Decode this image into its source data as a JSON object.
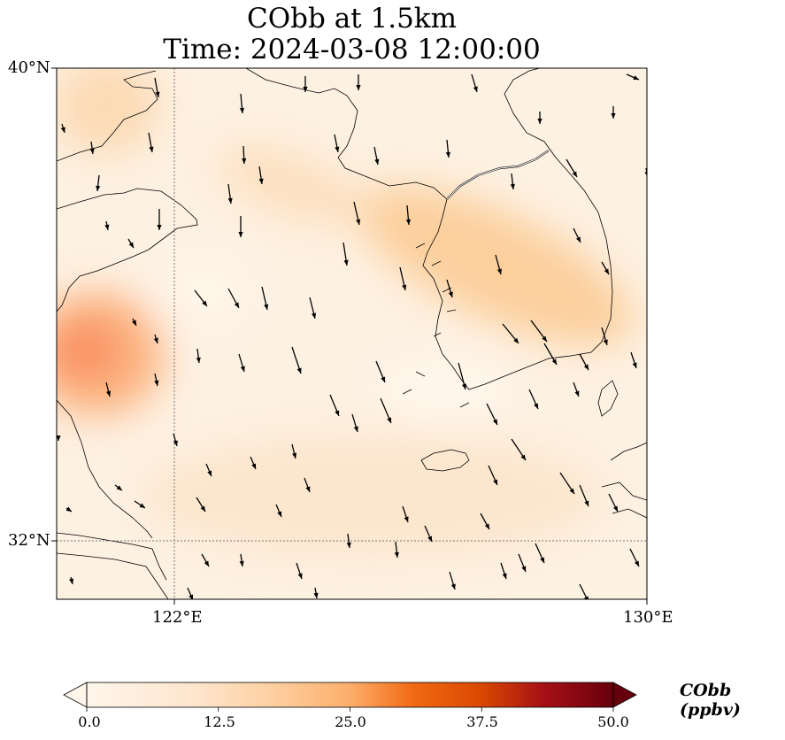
{
  "title": {
    "line1": "CObb at 1.5km",
    "line2": "Time: 2024-03-08 12:00:00"
  },
  "map": {
    "lon_range": [
      118,
      130
    ],
    "lat_range": [
      31,
      40
    ],
    "lat_ticks": [
      {
        "value": 40,
        "label": "40°N"
      },
      {
        "value": 32,
        "label": "32°N"
      }
    ],
    "lon_ticks": [
      {
        "value": 122,
        "label": "122°E"
      },
      {
        "value": 130,
        "label": "130°E"
      }
    ],
    "gridlines": "dotted",
    "field_peak": {
      "lon": 118.5,
      "lat": 34.3,
      "value": 22
    }
  },
  "colorbar": {
    "label": "CObb (ppbv)",
    "min": 0.0,
    "max": 50.0,
    "ticks": [
      "0.0",
      "12.5",
      "25.0",
      "37.5",
      "50.0"
    ],
    "colors": [
      "#fff5eb",
      "#fdd0a2",
      "#fd8d3c",
      "#d94801",
      "#a50f15",
      "#67000d"
    ],
    "extend": "both"
  }
}
